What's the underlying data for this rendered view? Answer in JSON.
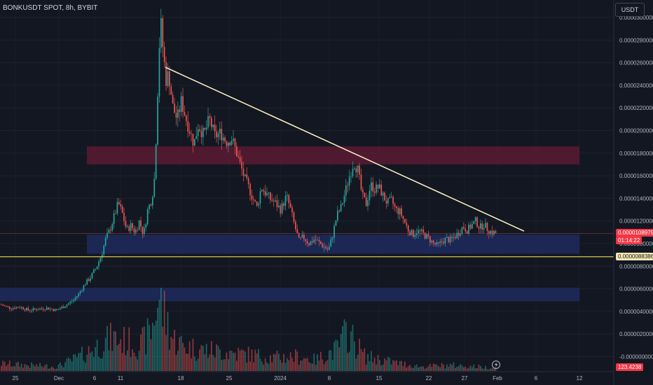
{
  "title": "BONKUSDT SPOT, 8h, BYBIT",
  "currency_button": "USDT",
  "price_tag": "0.0000108979",
  "countdown_tag": "01:14:22",
  "level_tag": "0.0000088386",
  "volume_tag": "123.4238",
  "colors": {
    "background": "#131722",
    "up": "#26a69a",
    "down": "#ef5350",
    "trendline": "#fff3c4",
    "support_line": "#d8c84a",
    "resistance_zone": "#5b1a33",
    "support_zone": "#1e2a5c",
    "price_tag_bg": "#f23645",
    "level_tag_bg": "#f5e6b3"
  },
  "chart_data": {
    "type": "candlestick",
    "title": "BONKUSDT SPOT, 8h, BYBIT",
    "y_axis_ticks": [
      "0.0000300000",
      "0.0000280000",
      "0.0000260000",
      "0.0000240000",
      "0.0000220000",
      "0.0000200000",
      "0.0000180000",
      "0.0000160000",
      "0.0000140000",
      "0.0000120000",
      "0.0000100000",
      "0.0000080000",
      "0.0000060000",
      "0.0000040000",
      "0.0000020000",
      "-0.0000000000"
    ],
    "y_range": [
      0,
      3e-05
    ],
    "x_axis_ticks": [
      "25",
      "Dec",
      "6",
      "11",
      "18",
      "25",
      "2024",
      "8",
      "15",
      "22",
      "27",
      "Feb",
      "6",
      "12"
    ],
    "last_price": 1.08979e-05,
    "support_level": 8.8386e-06,
    "resistance_zone": [
      1.7e-05,
      1.86e-05
    ],
    "support_zone_1": [
      9.1e-06,
      1.08e-05
    ],
    "support_zone_2": [
      4.9e-06,
      6.1e-06
    ],
    "trendline": {
      "start": [
        "Dec 15",
        2.56e-05
      ],
      "end": [
        "Feb 3",
        1.11e-05
      ]
    },
    "close_path": [
      [
        0,
        4.6e-06
      ],
      [
        14,
        4.3e-06
      ],
      [
        28,
        4.4e-06
      ],
      [
        40,
        4.1e-06
      ],
      [
        52,
        4.2e-06
      ],
      [
        66,
        4.3e-06
      ],
      [
        80,
        4.1e-06
      ],
      [
        92,
        4.5e-06
      ],
      [
        104,
        5e-06
      ],
      [
        112,
        5.6e-06
      ],
      [
        120,
        6.4e-06
      ],
      [
        128,
        7e-06
      ],
      [
        136,
        7.8e-06
      ],
      [
        144,
        9e-06
      ],
      [
        150,
        1.04e-05
      ],
      [
        156,
        1.12e-05
      ],
      [
        162,
        1.24e-05
      ],
      [
        168,
        1.36e-05
      ],
      [
        174,
        1.26e-05
      ],
      [
        180,
        1.12e-05
      ],
      [
        186,
        1.16e-05
      ],
      [
        192,
        1.1e-05
      ],
      [
        198,
        1.2e-05
      ],
      [
        204,
        1.08e-05
      ],
      [
        210,
        1.3e-05
      ],
      [
        216,
        1.4e-05
      ],
      [
        220,
        1.6e-05
      ],
      [
        224,
        2.32e-05
      ],
      [
        228,
        3e-05
      ],
      [
        232,
        2.7e-05
      ],
      [
        236,
        2.45e-05
      ],
      [
        240,
        2.5e-05
      ],
      [
        246,
        2.2e-05
      ],
      [
        252,
        2.1e-05
      ],
      [
        258,
        2.26e-05
      ],
      [
        264,
        2.12e-05
      ],
      [
        270,
        2e-05
      ],
      [
        276,
        1.88e-05
      ],
      [
        282,
        2.05e-05
      ],
      [
        290,
        1.96e-05
      ],
      [
        298,
        2.1e-05
      ],
      [
        306,
        1.95e-05
      ],
      [
        314,
        1.98e-05
      ],
      [
        322,
        1.9e-05
      ],
      [
        330,
        1.93e-05
      ],
      [
        336,
        1.82e-05
      ],
      [
        342,
        1.7e-05
      ],
      [
        348,
        1.58e-05
      ],
      [
        354,
        1.5e-05
      ],
      [
        360,
        1.4e-05
      ],
      [
        366,
        1.32e-05
      ],
      [
        372,
        1.5e-05
      ],
      [
        378,
        1.45e-05
      ],
      [
        384,
        1.4e-05
      ],
      [
        392,
        1.36e-05
      ],
      [
        400,
        1.3e-05
      ],
      [
        408,
        1.42e-05
      ],
      [
        414,
        1.3e-05
      ],
      [
        420,
        1.15e-05
      ],
      [
        426,
        1.02e-05
      ],
      [
        432,
        1.06e-05
      ],
      [
        440,
        1e-05
      ],
      [
        448,
        1.04e-05
      ],
      [
        456,
        1e-05
      ],
      [
        462,
        9.7e-06
      ],
      [
        468,
        9.4e-06
      ],
      [
        474,
        1.08e-05
      ],
      [
        480,
        1.25e-05
      ],
      [
        486,
        1.32e-05
      ],
      [
        492,
        1.46e-05
      ],
      [
        498,
        1.6e-05
      ],
      [
        504,
        1.72e-05
      ],
      [
        510,
        1.65e-05
      ],
      [
        516,
        1.42e-05
      ],
      [
        522,
        1.35e-05
      ],
      [
        528,
        1.52e-05
      ],
      [
        534,
        1.48e-05
      ],
      [
        540,
        1.5e-05
      ],
      [
        546,
        1.42e-05
      ],
      [
        552,
        1.36e-05
      ],
      [
        558,
        1.38e-05
      ],
      [
        564,
        1.3e-05
      ],
      [
        570,
        1.28e-05
      ],
      [
        576,
        1.2e-05
      ],
      [
        582,
        1.12e-05
      ],
      [
        588,
        1.08e-05
      ],
      [
        594,
        1.11e-05
      ],
      [
        600,
        1.1e-05
      ],
      [
        606,
        1.07e-05
      ],
      [
        612,
        1.04e-05
      ],
      [
        618,
        1e-05
      ],
      [
        624,
        9.8e-06
      ],
      [
        630,
        1.02e-05
      ],
      [
        636,
        1.04e-05
      ],
      [
        642,
        1.03e-05
      ],
      [
        648,
        1.06e-05
      ],
      [
        654,
        1.1e-05
      ],
      [
        660,
        1.15e-05
      ],
      [
        666,
        1.12e-05
      ],
      [
        672,
        1.16e-05
      ],
      [
        678,
        1.2e-05
      ],
      [
        684,
        1.14e-05
      ],
      [
        690,
        1.17e-05
      ],
      [
        696,
        1.12e-05
      ],
      [
        702,
        1.1e-05
      ],
      [
        708,
        1.09e-05
      ]
    ],
    "volume_profile": [
      [
        0,
        0.1
      ],
      [
        40,
        0.08
      ],
      [
        80,
        0.06
      ],
      [
        110,
        0.18
      ],
      [
        140,
        0.35
      ],
      [
        160,
        0.45
      ],
      [
        180,
        0.4
      ],
      [
        200,
        0.35
      ],
      [
        215,
        0.55
      ],
      [
        225,
        1.0
      ],
      [
        235,
        0.75
      ],
      [
        245,
        0.45
      ],
      [
        260,
        0.35
      ],
      [
        280,
        0.3
      ],
      [
        300,
        0.28
      ],
      [
        330,
        0.25
      ],
      [
        360,
        0.22
      ],
      [
        390,
        0.18
      ],
      [
        420,
        0.2
      ],
      [
        450,
        0.15
      ],
      [
        480,
        0.3
      ],
      [
        495,
        0.55
      ],
      [
        505,
        0.4
      ],
      [
        520,
        0.2
      ],
      [
        560,
        0.12
      ],
      [
        600,
        0.06
      ],
      [
        640,
        0.08
      ],
      [
        680,
        0.06
      ],
      [
        708,
        0.04
      ]
    ]
  }
}
